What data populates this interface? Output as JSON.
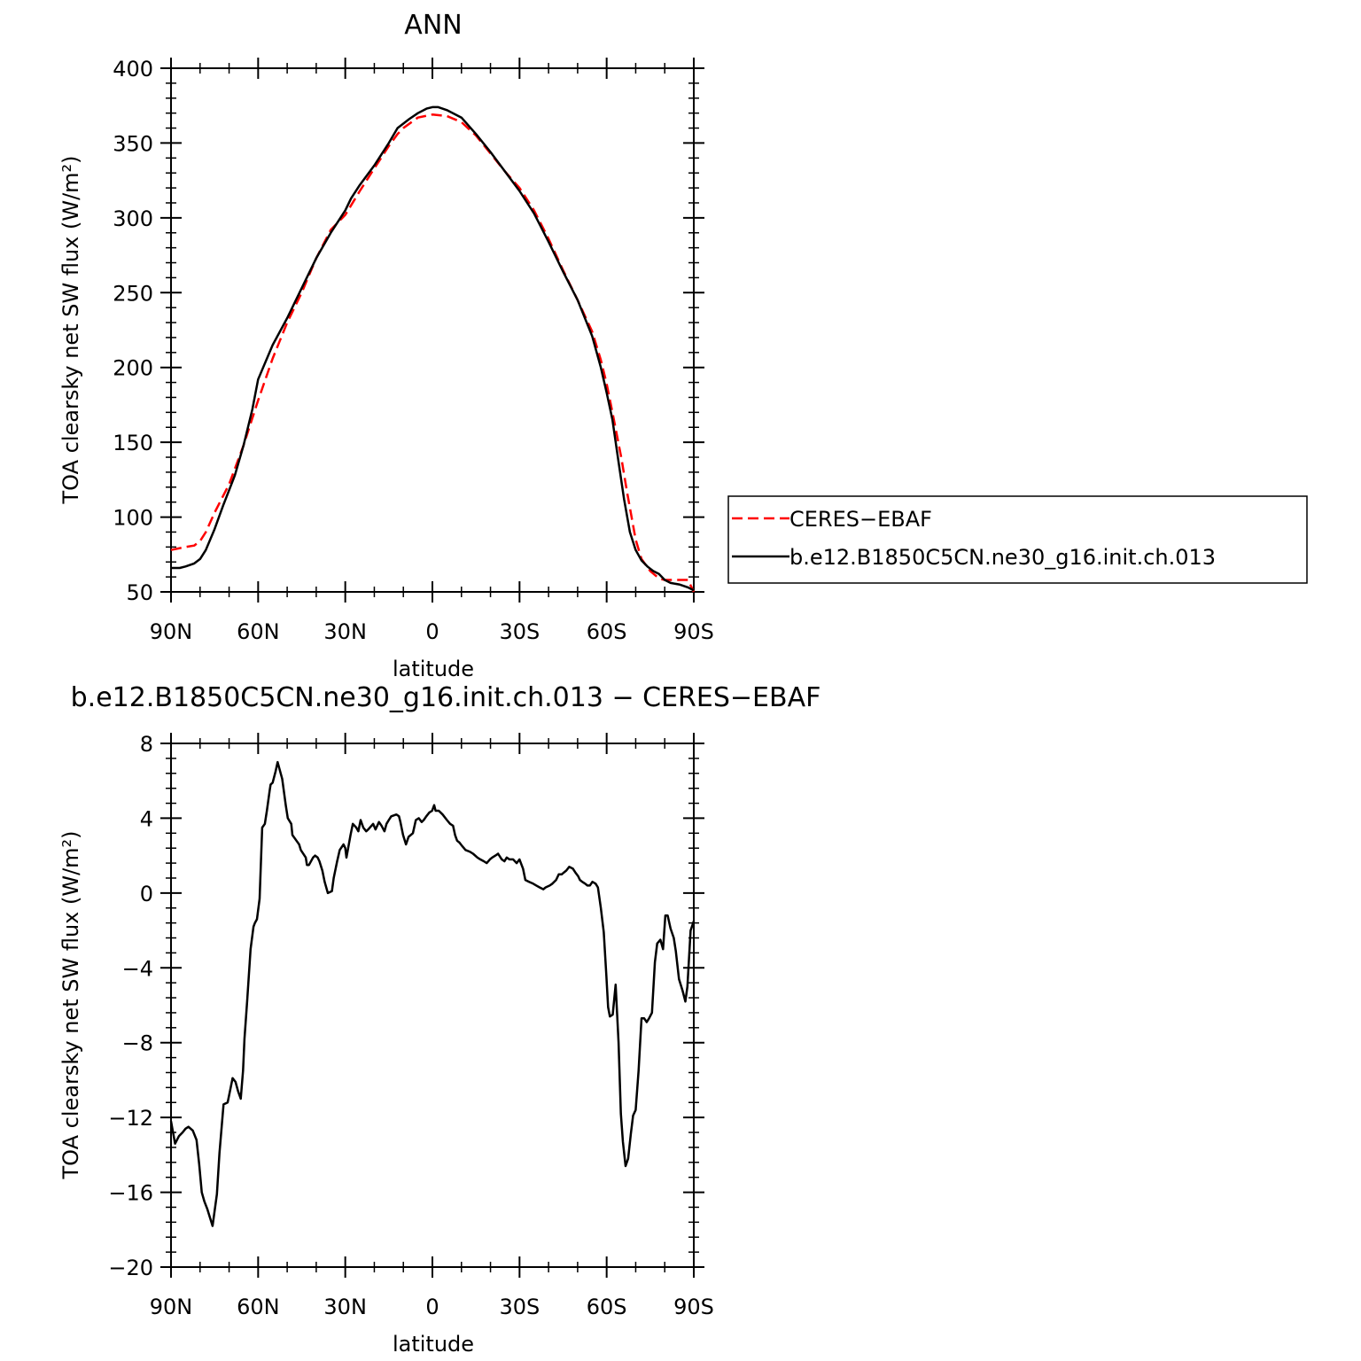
{
  "chart_data": [
    {
      "type": "line",
      "title": "ANN",
      "xlabel": "latitude",
      "ylabel": "TOA clearsky net SW flux (W/m²)",
      "xlim": [
        90,
        -90
      ],
      "ylim": [
        50,
        400
      ],
      "xticks": [
        90,
        60,
        30,
        0,
        -30,
        -60,
        -90
      ],
      "xtick_labels": [
        "90N",
        "60N",
        "30N",
        "0",
        "30S",
        "60S",
        "90S"
      ],
      "yticks": [
        50,
        100,
        150,
        200,
        250,
        300,
        350,
        400
      ],
      "ytick_labels": [
        "50",
        "100",
        "150",
        "200",
        "250",
        "300",
        "350",
        "400"
      ],
      "grid": false,
      "legend_position": "right",
      "series": [
        {
          "name": "CERES−EBAF",
          "color": "#ff0000",
          "dash": "dashed",
          "x": [
            90,
            85,
            82,
            80,
            78,
            75,
            70,
            65,
            60,
            55,
            50,
            45,
            40,
            35,
            30,
            25,
            20,
            15,
            12,
            10,
            5,
            0,
            -5,
            -10,
            -15,
            -20,
            -25,
            -30,
            -35,
            -40,
            -45,
            -50,
            -55,
            -58,
            -60,
            -62,
            -65,
            -67,
            -70,
            -72,
            -75,
            -78,
            -80,
            -82,
            -85,
            -88,
            -90
          ],
          "y": [
            78,
            80,
            81,
            84,
            90,
            103,
            122,
            148,
            178,
            206,
            230,
            250,
            273,
            292,
            302,
            318,
            333,
            348,
            356,
            360,
            367,
            369,
            368,
            364,
            355,
            343,
            331,
            320,
            305,
            286,
            265,
            245,
            224,
            205,
            189,
            170,
            140,
            117,
            85,
            72,
            64,
            59,
            58,
            58,
            58,
            58,
            50
          ]
        },
        {
          "name": "b.e12.B1850C5CN.ne30_g16.init.ch.013",
          "color": "#000000",
          "dash": "solid",
          "x": [
            90,
            87,
            85,
            82,
            80,
            78,
            75,
            72,
            70,
            68,
            65,
            62,
            60,
            55,
            50,
            45,
            40,
            35,
            30,
            28,
            25,
            20,
            15,
            12,
            10,
            8,
            5,
            2,
            0,
            -2,
            -5,
            -10,
            -15,
            -20,
            -25,
            -30,
            -35,
            -40,
            -45,
            -50,
            -55,
            -58,
            -60,
            -62,
            -64,
            -66,
            -68,
            -70,
            -72,
            -74,
            -76,
            -78,
            -80,
            -82,
            -85,
            -88,
            -90
          ],
          "y": [
            66,
            66,
            67,
            69,
            72,
            78,
            92,
            108,
            118,
            128,
            148,
            172,
            192,
            215,
            233,
            253,
            273,
            290,
            305,
            313,
            322,
            335,
            350,
            360,
            363,
            366,
            370,
            373,
            374,
            374,
            372,
            367,
            356,
            344,
            331,
            318,
            303,
            284,
            264,
            245,
            221,
            200,
            183,
            165,
            138,
            112,
            90,
            78,
            71,
            67,
            64,
            62,
            58,
            56,
            55,
            53,
            51
          ]
        }
      ]
    },
    {
      "type": "line",
      "title": "b.e12.B1850C5CN.ne30_g16.init.ch.013 − CERES−EBAF",
      "xlabel": "latitude",
      "ylabel": "TOA clearsky net SW flux (W/m²)",
      "xlim": [
        90,
        -90
      ],
      "ylim": [
        -20,
        8
      ],
      "xticks": [
        90,
        60,
        30,
        0,
        -30,
        -60,
        -90
      ],
      "xtick_labels": [
        "90N",
        "60N",
        "30N",
        "0",
        "30S",
        "60S",
        "90S"
      ],
      "yticks": [
        -20,
        -16,
        -12,
        -8,
        -4,
        0,
        4,
        8
      ],
      "ytick_labels": [
        "−20",
        "−16",
        "−12",
        "−8",
        "−4",
        "0",
        "4",
        "8"
      ],
      "grid": false,
      "series": [
        {
          "color": "#000000",
          "dash": "solid",
          "x": [
            90,
            88.6,
            87.3,
            86,
            85,
            84,
            82.5,
            81.2,
            80.3,
            79.4,
            78.5,
            77.5,
            75.7,
            74.2,
            73.3,
            71.9,
            70.5,
            69.7,
            68.8,
            67.8,
            66.9,
            66,
            65.2,
            64.7,
            63.8,
            62.6,
            61.6,
            61.1,
            60.4,
            59.5,
            58.6,
            57.7,
            57,
            56,
            55.7,
            55,
            54,
            53.3,
            51.7,
            50.5,
            49.8,
            48.6,
            48.2,
            46.8,
            45.9,
            45.3,
            43.6,
            43.2,
            42.5,
            41.1,
            40.4,
            39.5,
            38.9,
            37.9,
            37.1,
            36,
            34.6,
            34,
            32.8,
            31.9,
            30.6,
            30,
            29.6,
            28.2,
            27.4,
            26.2,
            25.5,
            24.7,
            23.8,
            22.8,
            22.1,
            20.4,
            19.6,
            18.4,
            17.5,
            16.5,
            15.8,
            15,
            14.2,
            12.4,
            11.5,
            11,
            10.1,
            9.1,
            8.2,
            6.7,
            5.7,
            4.7,
            3.7,
            3,
            2.1,
            1.1,
            0.1,
            -0.6,
            -1.1,
            -2.2,
            -3.5,
            -5,
            -6.1,
            -7.1,
            -7.8,
            -8.5,
            -9.3,
            -10.3,
            -11.4,
            -13,
            -14,
            -15.5,
            -16.5,
            -17.7,
            -18.7,
            -19.8,
            -20.6,
            -21.7,
            -22.6,
            -23.9,
            -24.8,
            -25.6,
            -26.5,
            -27.8,
            -29,
            -30,
            -31.2,
            -32,
            -33.3,
            -34.7,
            -35.8,
            -36.9,
            -38.2,
            -39,
            -40.4,
            -41.3,
            -42.6,
            -43.5,
            -44.5,
            -45.3,
            -46.1,
            -47.1,
            -48.4,
            -49.2,
            -50.2,
            -50.8,
            -51.6,
            -52.6,
            -53.4,
            -54.2,
            -55.1,
            -56.2,
            -57,
            -58,
            -59,
            -59.9,
            -60.5,
            -61.1,
            -62.1,
            -63.1,
            -64.1,
            -64.9,
            -65.6,
            -66.5,
            -67.4,
            -68.3,
            -69.1,
            -70,
            -71,
            -72,
            -72.9,
            -73.8,
            -74.6,
            -75.6,
            -76.6,
            -77.4,
            -78.5,
            -79.4,
            -80.2,
            -81,
            -82,
            -83.1,
            -83.8,
            -84.9,
            -86.1,
            -87.1,
            -87.8,
            -88.9,
            -90
          ],
          "y": [
            -12.2,
            -13.4,
            -13,
            -12.8,
            -12.6,
            -12.5,
            -12.7,
            -13.2,
            -14.5,
            -16,
            -16.5,
            -16.9,
            -17.8,
            -16.1,
            -13.9,
            -11.3,
            -11.2,
            -10.6,
            -9.9,
            -10.1,
            -10.6,
            -11,
            -9.5,
            -7.8,
            -5.8,
            -3,
            -1.8,
            -1.6,
            -1.4,
            -0.3,
            3.5,
            3.7,
            4.4,
            5.5,
            5.8,
            5.9,
            6.5,
            7,
            6.1,
            4.7,
            4,
            3.7,
            3.1,
            2.8,
            2.6,
            2.3,
            1.9,
            1.5,
            1.5,
            1.9,
            2,
            1.9,
            1.7,
            1.2,
            0.6,
            0,
            0.1,
            0.8,
            1.7,
            2.3,
            2.6,
            2.4,
            1.9,
            3.1,
            3.7,
            3.5,
            3.3,
            3.9,
            3.5,
            3.3,
            3.4,
            3.7,
            3.4,
            3.8,
            3.6,
            3.3,
            3.7,
            3.9,
            4.1,
            4.2,
            4.1,
            3.8,
            3.1,
            2.6,
            3,
            3.2,
            3.9,
            4,
            3.8,
            3.9,
            4.1,
            4.3,
            4.4,
            4.7,
            4.4,
            4.4,
            4.2,
            3.9,
            3.7,
            3.6,
            3.1,
            2.8,
            2.7,
            2.5,
            2.3,
            2.2,
            2.1,
            1.9,
            1.8,
            1.7,
            1.6,
            1.8,
            1.9,
            2,
            2.1,
            1.8,
            1.7,
            1.9,
            1.8,
            1.8,
            1.6,
            1.8,
            1.3,
            0.7,
            0.6,
            0.5,
            0.4,
            0.3,
            0.2,
            0.3,
            0.4,
            0.5,
            0.7,
            1,
            1,
            1.1,
            1.2,
            1.4,
            1.3,
            1.1,
            0.9,
            0.7,
            0.6,
            0.5,
            0.4,
            0.4,
            0.6,
            0.5,
            0.3,
            -0.8,
            -2.1,
            -4.4,
            -6.1,
            -6.6,
            -6.5,
            -4.9,
            -8,
            -11.8,
            -13.3,
            -14.6,
            -14.2,
            -12.9,
            -11.9,
            -11.6,
            -9.5,
            -6.7,
            -6.7,
            -6.9,
            -6.7,
            -6.4,
            -3.7,
            -2.7,
            -2.5,
            -3,
            -1.2,
            -1.2,
            -1.9,
            -2.4,
            -3.1,
            -4.6,
            -5.2,
            -5.8,
            -5,
            -2,
            -1.5
          ]
        }
      ]
    }
  ]
}
